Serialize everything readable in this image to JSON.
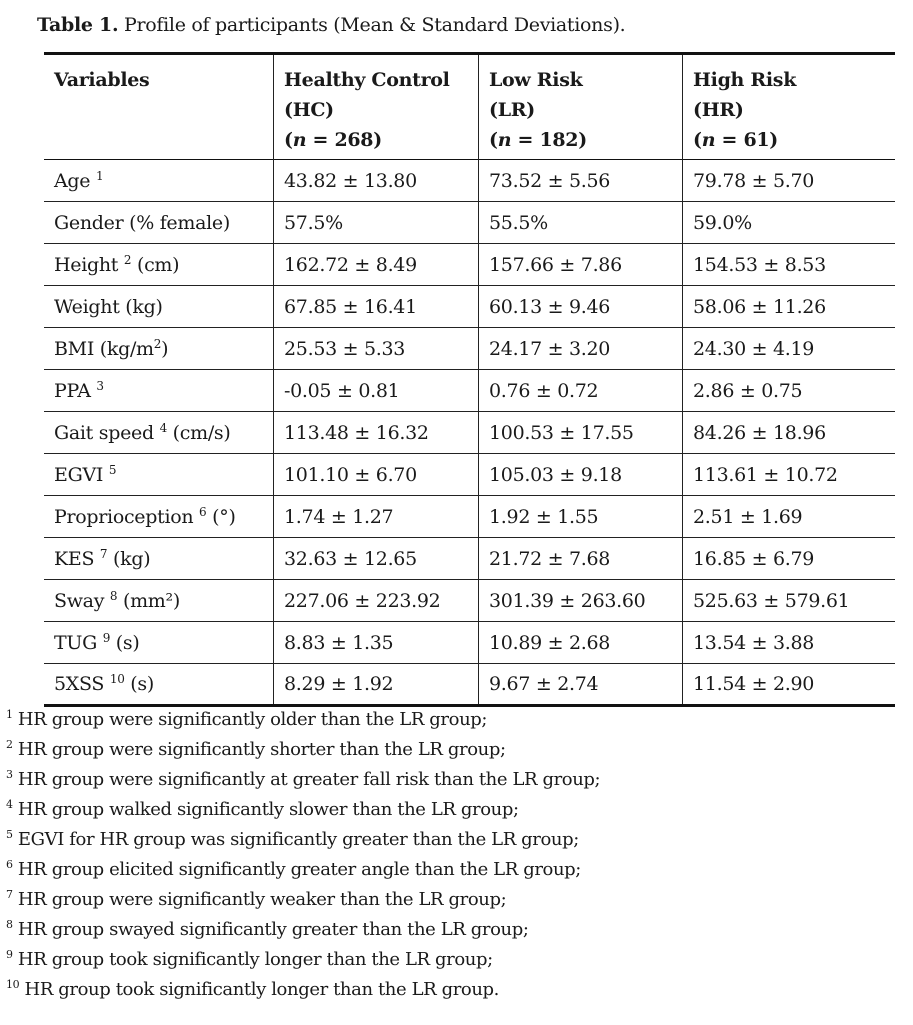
{
  "caption": {
    "label": "Table 1.",
    "text": " Profile of participants (Mean & Standard Deviations)."
  },
  "header": [
    {
      "name": "Variables"
    },
    {
      "name": "Healthy Control",
      "abbr": "(HC)",
      "n_prefix": "(",
      "n_var": "n",
      "n_suffix": " = 268)"
    },
    {
      "name": "Low Risk",
      "abbr": "(LR)",
      "n_prefix": "(",
      "n_var": "n",
      "n_suffix": " = 182)"
    },
    {
      "name": "High Risk",
      "abbr": "(HR)",
      "n_prefix": "(",
      "n_var": "n",
      "n_suffix": " = 61)"
    }
  ],
  "rows": [
    {
      "label": "Age ",
      "sup": "1",
      "suffix": "",
      "hc": "43.82 ± 13.80",
      "lr": "73.52 ± 5.56",
      "hr": "79.78 ± 5.70"
    },
    {
      "label": "Gender (% female)",
      "sup": "",
      "suffix": "",
      "hc": "57.5%",
      "lr": "55.5%",
      "hr": "59.0%"
    },
    {
      "label": "Height ",
      "sup": "2",
      "suffix": " (cm)",
      "hc": "162.72 ± 8.49",
      "lr": "157.66 ± 7.86",
      "hr": "154.53 ± 8.53"
    },
    {
      "label": "Weight (kg)",
      "sup": "",
      "suffix": "",
      "hc": "67.85 ± 16.41",
      "lr": "60.13 ± 9.46",
      "hr": "58.06 ± 11.26"
    },
    {
      "label": "BMI (kg/m",
      "sup": "2",
      "suffix": ")",
      "hc": "25.53 ± 5.33",
      "lr": "24.17 ± 3.20",
      "hr": "24.30 ± 4.19"
    },
    {
      "label": "PPA ",
      "sup": "3",
      "suffix": "",
      "hc": "-0.05 ± 0.81",
      "lr": "0.76 ± 0.72",
      "hr": "2.86 ± 0.75"
    },
    {
      "label": "Gait speed ",
      "sup": "4",
      "suffix": " (cm/s)",
      "hc": "113.48 ± 16.32",
      "lr": "100.53 ± 17.55",
      "hr": "84.26 ± 18.96"
    },
    {
      "label": "EGVI ",
      "sup": "5",
      "suffix": "",
      "hc": "101.10 ± 6.70",
      "lr": "105.03 ± 9.18",
      "hr": "113.61 ± 10.72"
    },
    {
      "label": "Proprioception ",
      "sup": "6",
      "suffix": " (°)",
      "hc": "1.74 ± 1.27",
      "lr": "1.92 ± 1.55",
      "hr": "2.51 ± 1.69"
    },
    {
      "label": "KES ",
      "sup": "7",
      "suffix": " (kg)",
      "hc": "32.63 ± 12.65",
      "lr": "21.72 ± 7.68",
      "hr": "16.85 ± 6.79"
    },
    {
      "label": "Sway ",
      "sup": "8",
      "suffix": " (mm²)",
      "hc": "227.06 ± 223.92",
      "lr": "301.39 ± 263.60",
      "hr": "525.63 ± 579.61"
    },
    {
      "label": "TUG ",
      "sup": "9",
      "suffix": " (s)",
      "hc": "8.83 ± 1.35",
      "lr": "10.89 ± 2.68",
      "hr": "13.54 ± 3.88"
    },
    {
      "label": "5XSS ",
      "sup": "10",
      "suffix": " (s)",
      "hc": "8.29 ± 1.92",
      "lr": "9.67 ± 2.74",
      "hr": "11.54 ± 2.90"
    }
  ],
  "footnotes": [
    {
      "sup": "1",
      "text": " HR group were significantly older than the LR group;"
    },
    {
      "sup": "2",
      "text": " HR group were significantly shorter than the LR group;"
    },
    {
      "sup": "3",
      "text": " HR group were significantly at greater fall risk than the LR group;"
    },
    {
      "sup": "4",
      "text": " HR group walked significantly slower than the LR group;"
    },
    {
      "sup": "5",
      "text": " EGVI for HR group was significantly greater than the LR group;"
    },
    {
      "sup": "6",
      "text": " HR group elicited significantly greater angle than the LR group;"
    },
    {
      "sup": "7",
      "text": " HR group were significantly weaker than the LR group;"
    },
    {
      "sup": "8",
      "text": " HR group swayed significantly greater than the LR group;"
    },
    {
      "sup": "9",
      "text": " HR group took significantly longer than the LR group;"
    },
    {
      "sup": "10",
      "text": " HR group took significantly longer than the LR group."
    }
  ]
}
